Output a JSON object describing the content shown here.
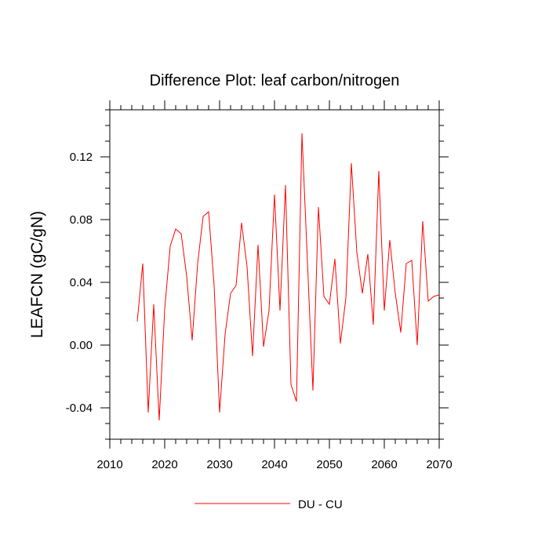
{
  "chart_data": {
    "type": "line",
    "title": "Difference Plot: leaf carbon/nitrogen",
    "xlabel": "",
    "ylabel": "LEAFCN  (gC/gN)",
    "xlim": [
      2010,
      2070
    ],
    "ylim": [
      -0.06,
      0.15
    ],
    "xticks": [
      2010,
      2020,
      2030,
      2040,
      2050,
      2060,
      2070
    ],
    "xtick_labels": [
      "2010",
      "2020",
      "2030",
      "2040",
      "2050",
      "2060",
      "2070"
    ],
    "yticks": [
      -0.04,
      0.0,
      0.04,
      0.08,
      0.12
    ],
    "ytick_labels": [
      "-0.04",
      "0.00",
      "0.04",
      "0.08",
      "0.12"
    ],
    "grid": false,
    "legend": "bottom-center",
    "series": [
      {
        "name": "DU - CU",
        "color": "#ff0000",
        "x": [
          2015,
          2016,
          2017,
          2018,
          2019,
          2020,
          2021,
          2022,
          2023,
          2024,
          2025,
          2026,
          2027,
          2028,
          2029,
          2030,
          2031,
          2032,
          2033,
          2034,
          2035,
          2036,
          2037,
          2038,
          2039,
          2040,
          2041,
          2042,
          2043,
          2044,
          2045,
          2046,
          2047,
          2048,
          2049,
          2050,
          2051,
          2052,
          2053,
          2054,
          2055,
          2056,
          2057,
          2058,
          2059,
          2060,
          2061,
          2062,
          2063,
          2064,
          2065,
          2066,
          2067,
          2068,
          2069,
          2070
        ],
        "values": [
          0.015,
          0.052,
          -0.043,
          0.026,
          -0.048,
          0.023,
          0.063,
          0.074,
          0.071,
          0.044,
          0.003,
          0.052,
          0.082,
          0.085,
          0.038,
          -0.043,
          0.007,
          0.033,
          0.038,
          0.078,
          0.05,
          -0.007,
          0.064,
          -0.001,
          0.022,
          0.096,
          0.022,
          0.102,
          -0.025,
          -0.036,
          0.135,
          0.053,
          -0.029,
          0.088,
          0.031,
          0.026,
          0.055,
          0.001,
          0.03,
          0.116,
          0.059,
          0.033,
          0.058,
          0.013,
          0.111,
          0.022,
          0.067,
          0.033,
          0.008,
          0.052,
          0.054,
          0.0,
          0.079,
          0.028,
          0.031,
          0.032
        ]
      }
    ]
  }
}
